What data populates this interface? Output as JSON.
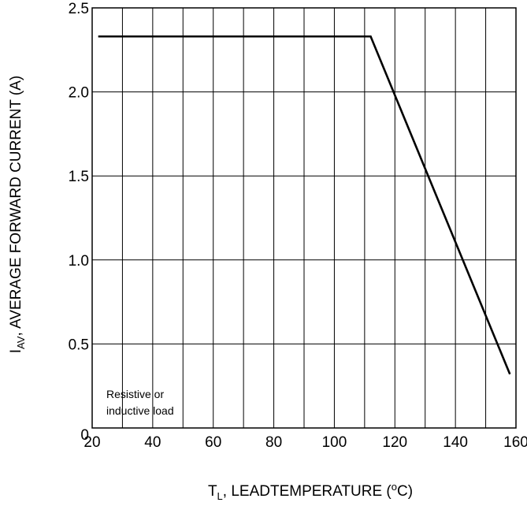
{
  "chart_data": {
    "type": "line",
    "xlim": [
      20,
      160
    ],
    "ylim": [
      0,
      2.5
    ],
    "x_ticks": [
      20,
      40,
      60,
      80,
      100,
      120,
      140,
      160
    ],
    "x_tick_labels": [
      "20",
      "40",
      "60",
      "80",
      "100",
      "120",
      "140",
      "160"
    ],
    "y_ticks": [
      0,
      0.5,
      1.0,
      1.5,
      2.0,
      2.5
    ],
    "y_tick_labels": [
      "0",
      "0.5",
      "1.0",
      "1.5",
      "2.0",
      "2.5"
    ],
    "grid": {
      "vertical": true,
      "vertical_step": 10,
      "horizontal": true,
      "horizontal_step": 0.5
    },
    "xlabel": {
      "main_prefix": "T",
      "subscript": "L",
      "suffix": ", LEADTEMPERATURE (",
      "superscript": "o",
      "unit_end": "C)"
    },
    "ylabel": {
      "main_prefix": "I",
      "subscript": "AV",
      "suffix": ", AVERAGE FORWARD CURRENT (A)"
    },
    "annotation": {
      "line1": "Resistive or",
      "line2": "inductive load"
    },
    "series": [
      {
        "x": [
          22,
          112,
          158
        ],
        "y": [
          2.33,
          2.33,
          0.32
        ],
        "color": "#000000"
      }
    ]
  }
}
